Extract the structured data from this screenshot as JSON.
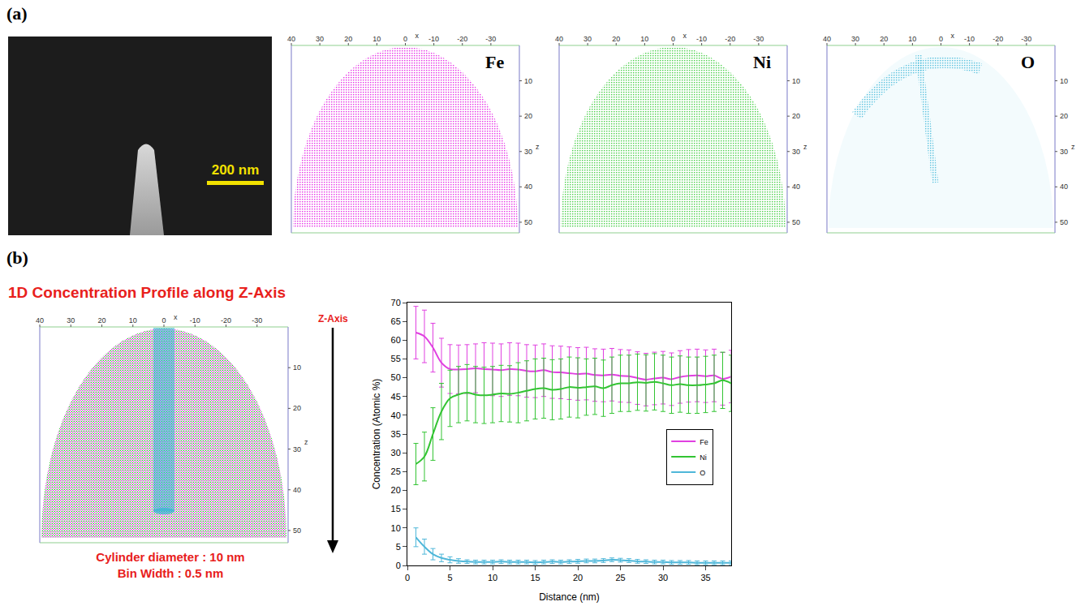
{
  "figure": {
    "panel_labels": [
      "(a)",
      "(b)"
    ],
    "sem": {
      "scale_bar": "200 nm"
    },
    "atom_maps": {
      "x_label": "x",
      "z_label": "z",
      "xlim": [
        40,
        -40
      ],
      "zlim": [
        0,
        53
      ],
      "xticks": [
        40,
        30,
        20,
        10,
        0,
        -10,
        -20,
        -30
      ],
      "zticks": [
        10,
        20,
        30,
        40,
        50
      ],
      "maps": [
        {
          "element": "Fe",
          "color": "#e000e0"
        },
        {
          "element": "Ni",
          "color": "#1fc41f"
        },
        {
          "element": "O",
          "color": "#35b3d6"
        }
      ]
    },
    "profile": {
      "title": "1D Concentration Profile along Z-Axis",
      "axis_label": "Z-Axis",
      "notes": [
        "Cylinder diameter : 10 nm",
        "Bin Width : 0.5 nm"
      ]
    }
  },
  "chart_data": {
    "type": "line",
    "x": [
      1,
      2,
      3,
      4,
      5,
      6,
      7,
      8,
      9,
      10,
      11,
      12,
      13,
      14,
      15,
      16,
      17,
      18,
      19,
      20,
      21,
      22,
      23,
      24,
      25,
      26,
      27,
      28,
      29,
      30,
      31,
      32,
      33,
      34,
      35,
      36,
      37,
      38
    ],
    "xlabel": "Distance (nm)",
    "ylabel": "Concentration (Atomic %)",
    "xlim": [
      0,
      38
    ],
    "xticks": [
      0,
      5,
      10,
      15,
      20,
      25,
      30,
      35
    ],
    "ylim": [
      0,
      70
    ],
    "yticks": [
      0,
      5,
      10,
      15,
      20,
      25,
      30,
      35,
      40,
      45,
      50,
      55,
      60,
      65,
      70
    ],
    "grid": false,
    "legend": "right",
    "series": [
      {
        "name": "Fe",
        "color": "#e040e0",
        "values": [
          62,
          61,
          58,
          54,
          52.3,
          52.2,
          52.3,
          52.5,
          52.3,
          52.2,
          52,
          52.3,
          52.2,
          51.8,
          51.7,
          52,
          51.5,
          51.4,
          51.2,
          51,
          51.1,
          50.7,
          50.6,
          50.8,
          50.5,
          50.4,
          49.9,
          49.5,
          49.8,
          50,
          49.6,
          50.2,
          50.5,
          50.6,
          50.4,
          50.6,
          49.7,
          50.3
        ],
        "error": [
          7,
          7,
          6.5,
          6.5,
          6.5,
          6.5,
          6.5,
          6.5,
          7,
          7,
          7,
          7,
          7,
          7,
          7,
          7,
          7,
          7,
          7,
          7,
          7,
          7,
          7,
          7,
          7,
          7,
          7,
          7,
          7,
          7,
          7,
          7,
          7,
          7,
          7,
          7,
          7,
          7
        ]
      },
      {
        "name": "Ni",
        "color": "#33c433",
        "values": [
          27,
          29,
          35,
          41,
          44.5,
          45.5,
          46,
          45.5,
          45.3,
          45.5,
          45.8,
          45.7,
          46,
          46.5,
          47,
          47.2,
          46.8,
          47,
          47.5,
          47.3,
          47.5,
          47.7,
          47.2,
          48,
          48.5,
          48.5,
          48.8,
          48.6,
          48.9,
          48.5,
          48,
          48.3,
          48,
          48,
          48.2,
          48.5,
          49.3,
          48.5
        ],
        "error": [
          5.5,
          6.5,
          7,
          7.5,
          7.5,
          7.5,
          7.5,
          7.5,
          7.5,
          7.5,
          7.5,
          7.5,
          8,
          8,
          8,
          8,
          8,
          8,
          8,
          8,
          7.5,
          7.5,
          7.5,
          7.5,
          7.5,
          7.5,
          7.5,
          7.5,
          7.5,
          7.5,
          7.5,
          7.5,
          7.5,
          7.5,
          7.5,
          7.5,
          7.5,
          7.5
        ]
      },
      {
        "name": "O",
        "color": "#4fb7d9",
        "values": [
          7.5,
          5,
          3,
          2,
          1.5,
          1.2,
          1,
          0.9,
          0.9,
          0.9,
          1,
          0.9,
          0.9,
          0.9,
          0.8,
          0.9,
          1,
          0.9,
          1,
          1.1,
          1.2,
          1.2,
          1.3,
          1.5,
          1.4,
          1.3,
          1.1,
          1,
          0.9,
          0.9,
          0.8,
          0.8,
          0.8,
          0.7,
          0.7,
          0.7,
          0.7,
          0.7
        ],
        "error": [
          2.5,
          2,
          1.5,
          1,
          0.8,
          0.6,
          0.5,
          0.5,
          0.5,
          0.5,
          0.5,
          0.5,
          0.5,
          0.5,
          0.5,
          0.5,
          0.5,
          0.5,
          0.5,
          0.5,
          0.5,
          0.5,
          0.5,
          0.5,
          0.5,
          0.5,
          0.5,
          0.5,
          0.5,
          0.5,
          0.5,
          0.5,
          0.5,
          0.5,
          0.5,
          0.5,
          0.5,
          0.5
        ]
      }
    ]
  }
}
